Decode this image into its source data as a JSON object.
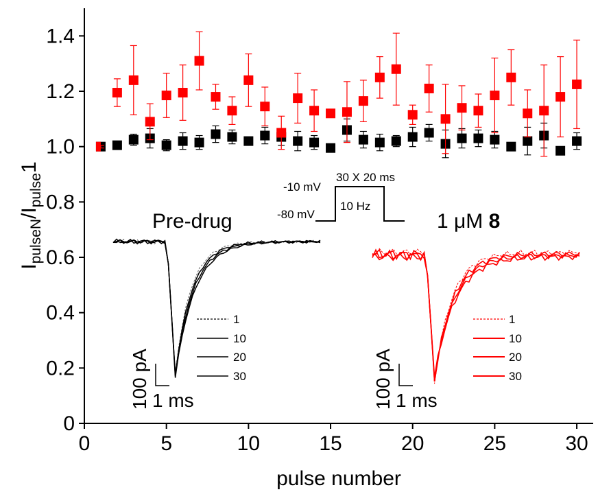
{
  "chart_data": {
    "type": "scatter",
    "xlabel": "pulse number",
    "ylabel": {
      "main": "I",
      "sub1": "pulseN",
      "slash": "/I",
      "sub2": "pulse",
      "tail": "1"
    },
    "xlim": [
      0,
      31
    ],
    "ylim": [
      0,
      1.5
    ],
    "x_ticks": [
      "0",
      "5",
      "10",
      "15",
      "20",
      "25",
      "30"
    ],
    "y_ticks": [
      "0",
      "0.2",
      "0.4",
      "0.6",
      "0.8",
      "1.0",
      "1.2",
      "1.4"
    ],
    "x_tick_values": [
      0,
      5,
      10,
      15,
      20,
      25,
      30
    ],
    "y_tick_values": [
      0,
      0.2,
      0.4,
      0.6,
      0.8,
      1.0,
      1.2,
      1.4
    ],
    "grid": false,
    "series": [
      {
        "color": "#000000",
        "x": [
          1,
          2,
          3,
          4,
          5,
          6,
          7,
          8,
          9,
          10,
          11,
          12,
          13,
          14,
          15,
          16,
          17,
          18,
          19,
          20,
          21,
          22,
          23,
          24,
          25,
          26,
          27,
          28,
          29,
          30
        ],
        "y": [
          1.0,
          1.005,
          1.025,
          1.03,
          1.005,
          1.02,
          1.015,
          1.045,
          1.035,
          1.02,
          1.04,
          1.035,
          1.02,
          1.015,
          0.995,
          1.06,
          1.025,
          1.015,
          1.02,
          1.035,
          1.05,
          1.01,
          1.03,
          1.03,
          1.025,
          1.0,
          1.02,
          1.04,
          0.985,
          1.02
        ],
        "err": [
          0.005,
          0.01,
          0.02,
          0.035,
          0.02,
          0.03,
          0.025,
          0.03,
          0.025,
          0.015,
          0.03,
          0.03,
          0.035,
          0.025,
          0.015,
          0.04,
          0.03,
          0.03,
          0.02,
          0.035,
          0.03,
          0.05,
          0.035,
          0.03,
          0.03,
          0.015,
          0.05,
          0.045,
          0.015,
          0.03
        ]
      },
      {
        "color": "#ff0000",
        "x": [
          1,
          2,
          3,
          4,
          5,
          6,
          7,
          8,
          9,
          10,
          11,
          12,
          13,
          14,
          15,
          16,
          17,
          18,
          19,
          20,
          21,
          22,
          23,
          24,
          25,
          26,
          27,
          28,
          29,
          30
        ],
        "y": [
          1.0,
          1.195,
          1.24,
          1.09,
          1.185,
          1.195,
          1.31,
          1.18,
          1.13,
          1.24,
          1.145,
          1.05,
          1.175,
          1.13,
          1.12,
          1.125,
          1.165,
          1.25,
          1.28,
          1.115,
          1.21,
          1.1,
          1.14,
          1.13,
          1.185,
          1.25,
          1.12,
          1.13,
          1.18,
          1.225
        ],
        "err": [
          0.005,
          0.05,
          0.125,
          0.065,
          0.08,
          0.1,
          0.105,
          0.045,
          0.05,
          0.095,
          0.07,
          0.06,
          0.09,
          0.075,
          0.015,
          0.11,
          0.075,
          0.075,
          0.13,
          0.035,
          0.085,
          0.125,
          0.08,
          0.06,
          0.135,
          0.1,
          0.085,
          0.165,
          0.145,
          0.16
        ]
      }
    ],
    "annotations": {
      "protocol": {
        "v1": "-10 mV",
        "v2": "-80 mV",
        "pulses": "30 X 20 ms",
        "freq": "10 Hz"
      },
      "left_panel": {
        "title": "Pre-drug",
        "legend": [
          "1",
          "10",
          "20",
          "30"
        ],
        "scale_y": "100 pA",
        "scale_x": "1 ms"
      },
      "right_panel": {
        "title_prefix": "1 μM ",
        "title_bold": "8",
        "legend": [
          "1",
          "10",
          "20",
          "30"
        ],
        "scale_y": "100 pA",
        "scale_x": "1 ms"
      }
    }
  }
}
